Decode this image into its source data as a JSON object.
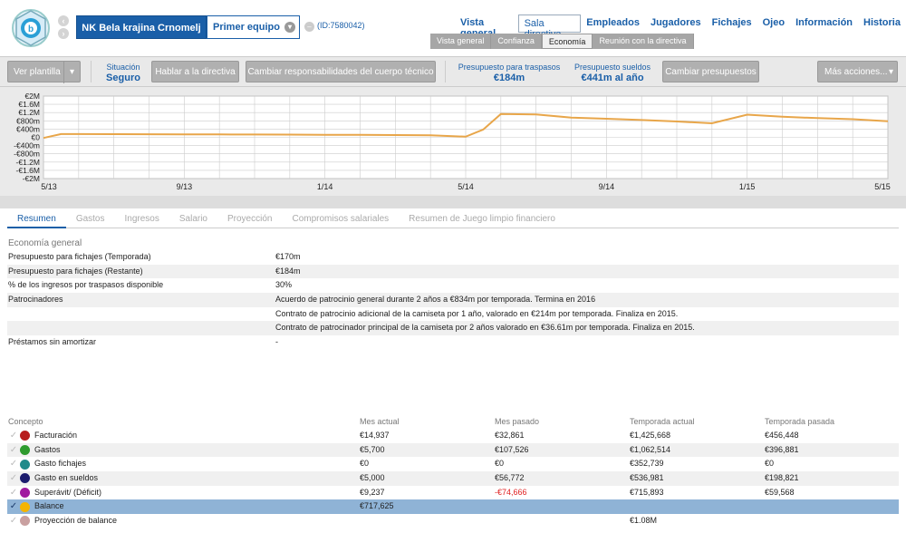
{
  "header": {
    "club_name": "NK Bela krajina Crnomelj",
    "team": "Primer equipo",
    "club_id": "(ID:7580042)",
    "nav": [
      "Vista general",
      "Sala directiva",
      "Empleados",
      "Jugadores",
      "Fichajes",
      "Ojeo",
      "Información",
      "Historia"
    ],
    "nav_active": 1,
    "subnav": [
      "Vista general",
      "Confianza",
      "Economía",
      "Reunión con la directiva"
    ],
    "subnav_active": 2
  },
  "toolbar": {
    "view_template": "Ver plantilla",
    "situation_label": "Situación",
    "situation_value": "Seguro",
    "talk_board": "Hablar a la directiva",
    "change_staff": "Cambiar responsabilidades del cuerpo técnico",
    "transfer_budget_label": "Presupuesto para traspasos",
    "transfer_budget_value": "€184m",
    "wage_budget_label": "Presupuesto sueldos",
    "wage_budget_value": "€441m al año",
    "change_budgets": "Cambiar presupuestos",
    "more_actions": "Más acciones..."
  },
  "chart_data": {
    "type": "line",
    "y_ticks": [
      "€2M",
      "€1.6M",
      "€1.2M",
      "€800m",
      "€400m",
      "€0",
      "-€400m",
      "-€800m",
      "-€1.2M",
      "-€1.6M",
      "-€2M"
    ],
    "ylim": [
      -2000,
      2000
    ],
    "x_ticks": [
      "5/13",
      "9/13",
      "1/14",
      "5/14",
      "9/14",
      "1/15",
      "5/15"
    ],
    "series": [
      {
        "color": "#e8a64a",
        "x": [
          0,
          0.5,
          1,
          2,
          3,
          4,
          5,
          6,
          7,
          8,
          9,
          10,
          11,
          12,
          12.5,
          13,
          14,
          15,
          16,
          17,
          18,
          19,
          20,
          21,
          22,
          23,
          24
        ],
        "values": [
          -30,
          160,
          160,
          155,
          150,
          145,
          140,
          135,
          130,
          125,
          120,
          110,
          100,
          30,
          380,
          1130,
          1110,
          960,
          900,
          840,
          770,
          680,
          1100,
          1000,
          930,
          880,
          780
        ]
      }
    ]
  },
  "tabs": [
    "Resumen",
    "Gastos",
    "Ingresos",
    "Salario",
    "Proyección",
    "Compromisos salariales",
    "Resumen de Juego limpio financiero"
  ],
  "tabs_active": 0,
  "summary": {
    "title": "Economía general",
    "rows": [
      {
        "k": "Presupuesto para fichajes (Temporada)",
        "v": "€170m"
      },
      {
        "k": "Presupuesto para fichajes (Restante)",
        "v": "€184m"
      },
      {
        "k": "% de los ingresos por traspasos disponible",
        "v": "30%"
      },
      {
        "k": "Patrocinadores",
        "v": "Acuerdo de patrocinio general durante 2 años a €834m por temporada. Termina en 2016"
      },
      {
        "k": "",
        "v": "Contrato de patrocinio adicional de la camiseta por 1 año, valorado en €214m por temporada. Finaliza en 2015."
      },
      {
        "k": "",
        "v": "Contrato de patrocinador principal de la camiseta por 2 años valorado en €36.61m por temporada. Finaliza en 2015."
      },
      {
        "k": "Préstamos sin amortizar",
        "v": "-"
      }
    ]
  },
  "finance": {
    "headers": [
      "Concepto",
      "Mes actual",
      "Mes pasado",
      "Temporada actual",
      "Temporada pasada"
    ],
    "rows": [
      {
        "name": "Facturación",
        "color": "#b71c1c",
        "c": [
          "€14,937",
          "€32,861",
          "€1,425,668",
          "€456,448"
        ],
        "neg": false
      },
      {
        "name": "Gastos",
        "color": "#2e9b2e",
        "c": [
          "€5,700",
          "€107,526",
          "€1,062,514",
          "€396,881"
        ],
        "neg": false
      },
      {
        "name": "Gasto fichajes",
        "color": "#1f8a8a",
        "c": [
          "€0",
          "€0",
          "€352,739",
          "€0"
        ],
        "neg": false
      },
      {
        "name": "Gasto en sueldos",
        "color": "#1c1c6e",
        "c": [
          "€5,000",
          "€56,772",
          "€536,981",
          "€198,821"
        ],
        "neg": false
      },
      {
        "name": "Superávit/ (Déficit)",
        "color": "#a01aa0",
        "c": [
          "€9,237",
          "-€74,666",
          "€715,893",
          "€59,568"
        ],
        "neg": true
      },
      {
        "name": "Balance",
        "color": "#f5b400",
        "c": [
          "€717,625",
          "",
          "",
          ""
        ],
        "neg": false,
        "sel": true
      },
      {
        "name": "Proyección de balance",
        "color": "#c9a0a0",
        "c": [
          "",
          "",
          "€1.08M",
          ""
        ],
        "neg": false
      }
    ]
  }
}
